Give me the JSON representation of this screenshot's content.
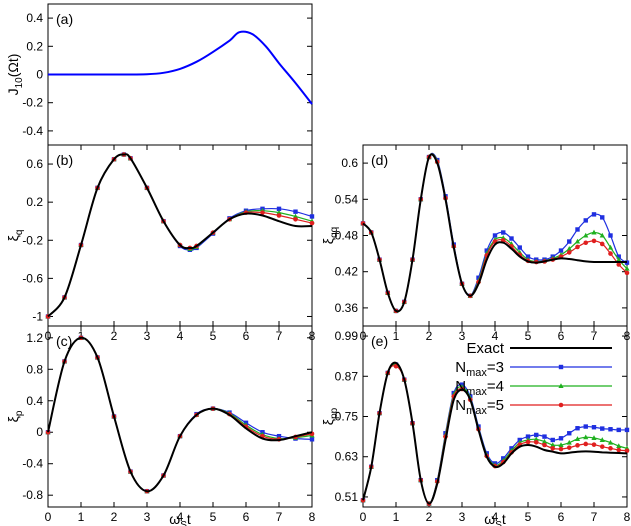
{
  "colors": {
    "exact": "#000000",
    "n3": "#1f2fe0",
    "n4": "#1fb01f",
    "n5": "#e01f1f",
    "j10": "#0000ff"
  },
  "legend": {
    "entries": [
      {
        "key": "exact",
        "label": "Exact",
        "sub": ""
      },
      {
        "key": "n3",
        "label": "N",
        "sub": "max",
        "suffix": "=3"
      },
      {
        "key": "n4",
        "label": "N",
        "sub": "max",
        "suffix": "=4"
      },
      {
        "key": "n5",
        "label": "N",
        "sub": "max",
        "suffix": "=5"
      }
    ]
  },
  "chart_data": [
    {
      "id": "a",
      "type": "line",
      "panel_label": "(a)",
      "ylabel": "J10(Ωt)",
      "xlabel": "",
      "xlim": [
        0,
        8
      ],
      "ylim": [
        -0.5,
        0.5
      ],
      "xticks": [],
      "yticks": [
        0.4,
        0.2,
        0,
        -0.2,
        -0.4
      ],
      "ytick_labels": [
        "0.4",
        "0.2",
        "0",
        "-0.2",
        "-0.4"
      ],
      "series": [
        {
          "key": "j10",
          "x": [
            0,
            1,
            2,
            3,
            3.5,
            4,
            4.5,
            5,
            5.5,
            5.8,
            6.2,
            6.6,
            7,
            7.5,
            8
          ],
          "y": [
            0,
            0,
            0,
            0.002,
            0.012,
            0.04,
            0.09,
            0.16,
            0.24,
            0.3,
            0.285,
            0.2,
            0.08,
            -0.06,
            -0.21
          ]
        }
      ]
    },
    {
      "id": "b",
      "type": "line",
      "panel_label": "(b)",
      "ylabel": "ξq",
      "xlabel": "",
      "xlim": [
        0,
        8
      ],
      "ylim": [
        -1.1,
        0.8
      ],
      "xticks": [
        0,
        1,
        2,
        3,
        4,
        5,
        6,
        7,
        8
      ],
      "xtick_labels": [
        "0",
        "1",
        "2",
        "3",
        "4",
        "5",
        "6",
        "7",
        "8"
      ],
      "yticks": [
        0.6,
        0.2,
        -0.2,
        -0.6,
        -1
      ],
      "ytick_labels": [
        "0.6",
        "0.2",
        "-0.2",
        "-0.6",
        "-1"
      ],
      "x": [
        0,
        0.5,
        1,
        1.5,
        2,
        2.3,
        2.5,
        3,
        3.5,
        4,
        4.3,
        4.5,
        5,
        5.5,
        6,
        6.5,
        7,
        7.5,
        8
      ],
      "series": [
        {
          "key": "exact",
          "y": [
            -1,
            -0.8,
            -0.25,
            0.35,
            0.65,
            0.7,
            0.66,
            0.35,
            0.0,
            -0.25,
            -0.28,
            -0.26,
            -0.12,
            0.02,
            0.08,
            0.06,
            0.0,
            -0.05,
            -0.05
          ]
        },
        {
          "key": "n3",
          "y": [
            -1,
            -0.8,
            -0.25,
            0.35,
            0.65,
            0.7,
            0.66,
            0.35,
            0.0,
            -0.26,
            -0.3,
            -0.28,
            -0.13,
            0.03,
            0.11,
            0.13,
            0.13,
            0.1,
            0.05
          ]
        },
        {
          "key": "n4",
          "y": [
            -1,
            -0.8,
            -0.25,
            0.35,
            0.65,
            0.7,
            0.66,
            0.35,
            0.0,
            -0.25,
            -0.29,
            -0.27,
            -0.12,
            0.02,
            0.1,
            0.11,
            0.09,
            0.05,
            0.0
          ]
        },
        {
          "key": "n5",
          "y": [
            -1,
            -0.8,
            -0.25,
            0.35,
            0.65,
            0.7,
            0.66,
            0.35,
            0.0,
            -0.25,
            -0.28,
            -0.26,
            -0.12,
            0.02,
            0.09,
            0.09,
            0.06,
            0.02,
            -0.02
          ]
        }
      ]
    },
    {
      "id": "c",
      "type": "line",
      "panel_label": "(c)",
      "ylabel": "ξp",
      "xlabel": "ωSt",
      "xlim": [
        0,
        8
      ],
      "ylim": [
        -0.95,
        1.35
      ],
      "xticks": [
        0,
        1,
        2,
        3,
        4,
        5,
        6,
        7,
        8
      ],
      "xtick_labels": [
        "0",
        "1",
        "2",
        "3",
        "4",
        "5",
        "6",
        "7",
        "8"
      ],
      "yticks": [
        1.2,
        0.8,
        0.4,
        0,
        -0.4,
        -0.8
      ],
      "ytick_labels": [
        "1.2",
        "0.8",
        "0.4",
        "0",
        "-0.4",
        "-0.8"
      ],
      "x": [
        0,
        0.5,
        1,
        1.5,
        2,
        2.5,
        3,
        3.5,
        4,
        4.5,
        5,
        5.5,
        6,
        6.5,
        7,
        7.5,
        8
      ],
      "series": [
        {
          "key": "exact",
          "y": [
            0,
            0.9,
            1.2,
            0.95,
            0.2,
            -0.5,
            -0.75,
            -0.55,
            -0.05,
            0.22,
            0.3,
            0.22,
            0.05,
            -0.08,
            -0.1,
            -0.05,
            0.0
          ]
        },
        {
          "key": "n3",
          "y": [
            0,
            0.9,
            1.2,
            0.95,
            0.2,
            -0.5,
            -0.75,
            -0.55,
            -0.05,
            0.23,
            0.3,
            0.25,
            0.12,
            0.0,
            -0.05,
            -0.08,
            -0.09
          ]
        },
        {
          "key": "n4",
          "y": [
            0,
            0.9,
            1.2,
            0.95,
            0.2,
            -0.5,
            -0.75,
            -0.55,
            -0.05,
            0.22,
            0.3,
            0.24,
            0.09,
            -0.03,
            -0.08,
            -0.07,
            -0.04
          ]
        },
        {
          "key": "n5",
          "y": [
            0,
            0.9,
            1.2,
            0.95,
            0.2,
            -0.5,
            -0.75,
            -0.55,
            -0.05,
            0.22,
            0.3,
            0.23,
            0.07,
            -0.05,
            -0.09,
            -0.06,
            -0.02
          ]
        }
      ]
    },
    {
      "id": "d",
      "type": "line",
      "panel_label": "(d)",
      "ylabel": "ξqq",
      "xlabel": "",
      "xlim": [
        0,
        8
      ],
      "ylim": [
        0.33,
        0.63
      ],
      "xticks": [
        0,
        1,
        2,
        3,
        4,
        5,
        6,
        7,
        8
      ],
      "xtick_labels": [
        "0",
        "1",
        "2",
        "3",
        "4",
        "5",
        "6",
        "7",
        "8"
      ],
      "yticks": [
        0.6,
        0.54,
        0.48,
        0.42,
        0.36
      ],
      "ytick_labels": [
        "0.6",
        "0.54",
        "0.48",
        "0.42",
        "0.36"
      ],
      "x": [
        0,
        0.25,
        0.5,
        0.75,
        1,
        1.25,
        1.5,
        1.75,
        2,
        2.25,
        2.5,
        2.75,
        3,
        3.25,
        3.5,
        3.75,
        4,
        4.25,
        4.5,
        4.75,
        5,
        5.25,
        5.5,
        5.75,
        6,
        6.25,
        6.5,
        6.75,
        7,
        7.25,
        7.5,
        7.75,
        8
      ],
      "series": [
        {
          "key": "exact",
          "y": [
            0.5,
            0.485,
            0.44,
            0.385,
            0.355,
            0.37,
            0.44,
            0.54,
            0.61,
            0.6,
            0.54,
            0.46,
            0.4,
            0.38,
            0.4,
            0.44,
            0.465,
            0.468,
            0.458,
            0.445,
            0.437,
            0.435,
            0.437,
            0.44,
            0.442,
            0.441,
            0.439,
            0.437,
            0.436,
            0.436,
            0.436,
            0.436,
            0.436
          ]
        },
        {
          "key": "n3",
          "y": [
            0.5,
            0.485,
            0.44,
            0.385,
            0.355,
            0.37,
            0.44,
            0.54,
            0.61,
            0.605,
            0.545,
            0.465,
            0.4,
            0.38,
            0.41,
            0.455,
            0.48,
            0.485,
            0.475,
            0.46,
            0.445,
            0.44,
            0.44,
            0.445,
            0.455,
            0.47,
            0.49,
            0.505,
            0.515,
            0.51,
            0.48,
            0.445,
            0.435
          ]
        },
        {
          "key": "n4",
          "y": [
            0.5,
            0.485,
            0.44,
            0.385,
            0.355,
            0.37,
            0.44,
            0.54,
            0.61,
            0.603,
            0.543,
            0.463,
            0.4,
            0.38,
            0.405,
            0.45,
            0.473,
            0.476,
            0.466,
            0.452,
            0.44,
            0.437,
            0.438,
            0.442,
            0.448,
            0.458,
            0.47,
            0.48,
            0.485,
            0.48,
            0.46,
            0.44,
            0.425
          ]
        },
        {
          "key": "n5",
          "y": [
            0.5,
            0.485,
            0.44,
            0.385,
            0.355,
            0.37,
            0.44,
            0.54,
            0.61,
            0.602,
            0.542,
            0.462,
            0.4,
            0.38,
            0.403,
            0.447,
            0.47,
            0.472,
            0.462,
            0.448,
            0.438,
            0.436,
            0.437,
            0.44,
            0.445,
            0.452,
            0.461,
            0.468,
            0.471,
            0.466,
            0.45,
            0.432,
            0.418
          ]
        }
      ]
    },
    {
      "id": "e",
      "type": "line",
      "panel_label": "(e)",
      "ylabel": "ξpp",
      "xlabel": "ωSt",
      "xlim": [
        0,
        8
      ],
      "ylim": [
        0.48,
        1.02
      ],
      "xticks": [
        0,
        1,
        2,
        3,
        4,
        5,
        6,
        7,
        8
      ],
      "xtick_labels": [
        "0",
        "1",
        "2",
        "3",
        "4",
        "5",
        "6",
        "7",
        "8"
      ],
      "yticks": [
        0.99,
        0.87,
        0.75,
        0.63,
        0.51
      ],
      "ytick_labels": [
        "0.99",
        "0.87",
        "0.75",
        "0.63",
        "0.51"
      ],
      "x": [
        0,
        0.25,
        0.5,
        0.75,
        1,
        1.25,
        1.5,
        1.75,
        2,
        2.25,
        2.5,
        2.75,
        3,
        3.25,
        3.5,
        3.75,
        4,
        4.25,
        4.5,
        4.75,
        5,
        5.25,
        5.5,
        5.75,
        6,
        6.25,
        6.5,
        6.75,
        7,
        7.25,
        7.5,
        7.75,
        8
      ],
      "series": [
        {
          "key": "exact",
          "y": [
            0.5,
            0.6,
            0.76,
            0.88,
            0.91,
            0.86,
            0.73,
            0.56,
            0.49,
            0.55,
            0.68,
            0.8,
            0.83,
            0.8,
            0.71,
            0.63,
            0.6,
            0.61,
            0.64,
            0.66,
            0.665,
            0.66,
            0.65,
            0.645,
            0.64,
            0.642,
            0.645,
            0.646,
            0.645,
            0.643,
            0.642,
            0.641,
            0.64
          ]
        },
        {
          "key": "n3",
          "y": [
            0.5,
            0.6,
            0.76,
            0.88,
            0.905,
            0.86,
            0.73,
            0.56,
            0.49,
            0.56,
            0.7,
            0.82,
            0.845,
            0.81,
            0.72,
            0.64,
            0.61,
            0.625,
            0.655,
            0.68,
            0.69,
            0.695,
            0.69,
            0.68,
            0.685,
            0.7,
            0.715,
            0.72,
            0.718,
            0.714,
            0.712,
            0.71,
            0.71
          ]
        },
        {
          "key": "n4",
          "y": [
            0.5,
            0.6,
            0.76,
            0.88,
            0.905,
            0.86,
            0.73,
            0.56,
            0.49,
            0.558,
            0.695,
            0.815,
            0.838,
            0.805,
            0.715,
            0.635,
            0.605,
            0.618,
            0.648,
            0.672,
            0.68,
            0.682,
            0.675,
            0.665,
            0.665,
            0.672,
            0.683,
            0.688,
            0.686,
            0.68,
            0.672,
            0.662,
            0.655
          ]
        },
        {
          "key": "n5",
          "y": [
            0.5,
            0.6,
            0.76,
            0.88,
            0.9,
            0.86,
            0.73,
            0.56,
            0.49,
            0.556,
            0.69,
            0.81,
            0.832,
            0.8,
            0.712,
            0.632,
            0.602,
            0.614,
            0.643,
            0.666,
            0.674,
            0.673,
            0.665,
            0.655,
            0.653,
            0.657,
            0.664,
            0.668,
            0.666,
            0.66,
            0.655,
            0.65,
            0.648
          ]
        }
      ]
    }
  ]
}
